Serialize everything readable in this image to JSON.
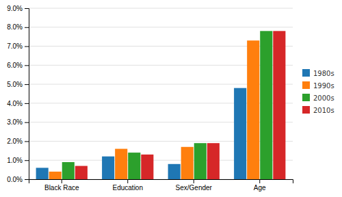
{
  "chart_data": {
    "type": "bar",
    "categories": [
      "Black Race",
      "Education",
      "Sex/Gender",
      "Age"
    ],
    "series": [
      {
        "name": "1980s",
        "values": [
          0.006,
          0.012,
          0.008,
          0.048
        ]
      },
      {
        "name": "1990s",
        "values": [
          0.004,
          0.016,
          0.017,
          0.073
        ]
      },
      {
        "name": "2000s",
        "values": [
          0.009,
          0.014,
          0.019,
          0.078
        ]
      },
      {
        "name": "2010s",
        "values": [
          0.007,
          0.013,
          0.019,
          0.078
        ]
      }
    ],
    "ylim": [
      0,
      0.09
    ],
    "yticks": [
      {
        "value": 0.0,
        "label": "0.0%"
      },
      {
        "value": 0.01,
        "label": "1.0%"
      },
      {
        "value": 0.02,
        "label": "2.0%"
      },
      {
        "value": 0.03,
        "label": "3.0%"
      },
      {
        "value": 0.04,
        "label": "4.0%"
      },
      {
        "value": 0.05,
        "label": "5.0%"
      },
      {
        "value": 0.06,
        "label": "6.0%"
      },
      {
        "value": 0.07,
        "label": "7.0%"
      },
      {
        "value": 0.08,
        "label": "8.0%"
      },
      {
        "value": 0.09,
        "label": "9.0%"
      }
    ],
    "grid": true,
    "legend": "right"
  }
}
